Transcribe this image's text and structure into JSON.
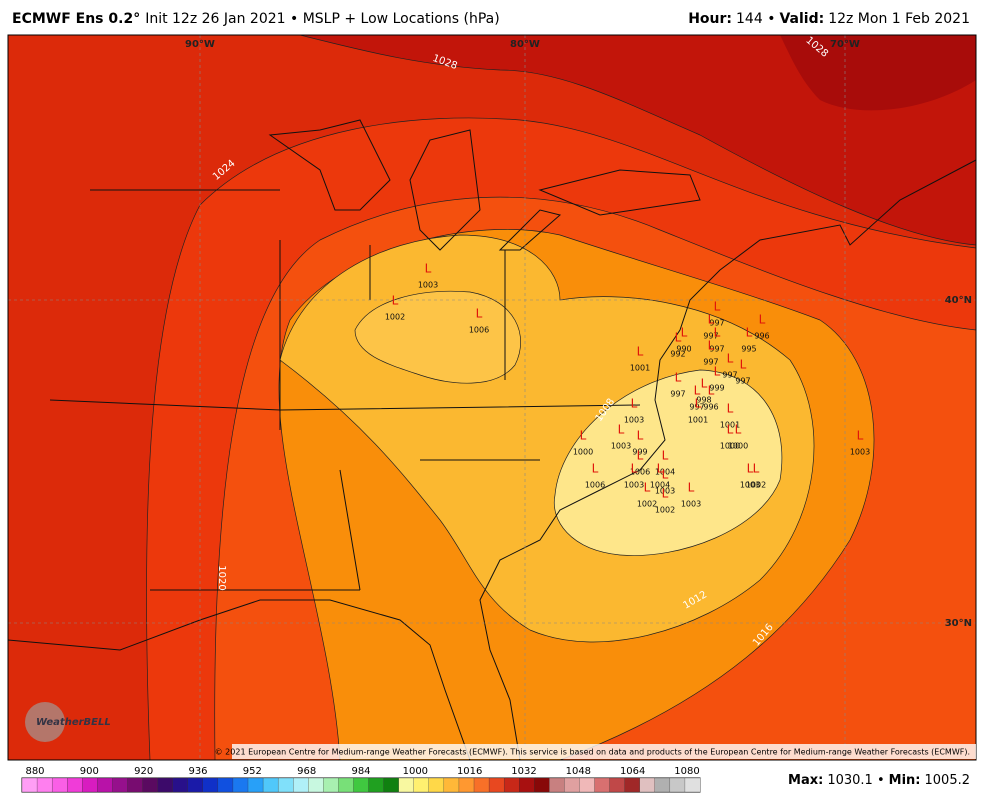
{
  "header": {
    "model": "ECMWF Ens 0.2°",
    "init": "Init 12z 26 Jan 2021 • MSLP + Low Locations (hPa)",
    "hour_label": "Hour:",
    "hour": "144 •",
    "valid_label": "Valid:",
    "valid": "12z Mon 1 Feb 2021"
  },
  "map": {
    "longitudes": [
      "90°W",
      "80°W",
      "70°W"
    ],
    "latitudes": [
      "40°N",
      "30°N"
    ],
    "contour_labels": [
      1028,
      1028,
      1024,
      1020,
      1008,
      1012,
      1016
    ],
    "low_symbol": "L",
    "lows": [
      1003,
      1002,
      1006,
      990,
      997,
      997,
      996,
      997,
      995,
      992,
      997,
      1001,
      997,
      997,
      997,
      999,
      998,
      997,
      996,
      1001,
      1003,
      1001,
      1000,
      1003,
      1000,
      1000,
      1003,
      999,
      1006,
      1004,
      1006,
      1003,
      1004,
      1003,
      1002,
      1003,
      1002,
      1002,
      1003
    ],
    "logo": "WeatherBELL",
    "copyright": "© 2021 European Centre for Medium-range Weather Forecasts (ECMWF). This service is based on data and products of the European Centre for Medium-range Weather Forecasts (ECMWF)."
  },
  "colorbar": {
    "ticks": [
      880,
      900,
      920,
      936,
      952,
      968,
      984,
      1000,
      1016,
      1032,
      1048,
      1064,
      1080
    ],
    "colors": [
      "#ff9ef5",
      "#ff7fef",
      "#fa5fe6",
      "#f03cd8",
      "#d81cc0",
      "#b812a8",
      "#96108c",
      "#780c70",
      "#5a0a60",
      "#3c0a6a",
      "#28108a",
      "#1a1aa8",
      "#1030c8",
      "#1050e0",
      "#1a78f0",
      "#28a0f8",
      "#50c8fa",
      "#80e0fa",
      "#b0f0f8",
      "#c8f8e0",
      "#a8f0b0",
      "#78e078",
      "#40c840",
      "#20a020",
      "#108010",
      "#f8f8a0",
      "#fff070",
      "#ffd848",
      "#ffb838",
      "#ff9830",
      "#f87028",
      "#e84820",
      "#c82818",
      "#a81010",
      "#880808",
      "#c88080",
      "#e0a0a0",
      "#f0b8b8",
      "#d87070",
      "#c04848",
      "#a02828",
      "#e0c0c0",
      "#b0b0b0",
      "#c8c8c8",
      "#e0e0e0"
    ]
  },
  "footer": {
    "max_label": "Max:",
    "max": "1030.1 •",
    "min_label": "Min:",
    "min": "1005.2"
  }
}
